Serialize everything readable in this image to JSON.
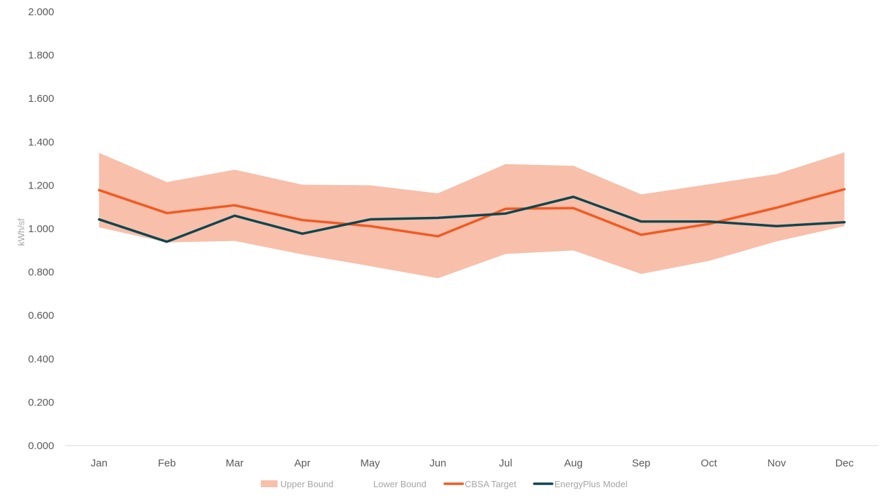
{
  "chart_data": {
    "type": "area",
    "categories": [
      "Jan",
      "Feb",
      "Mar",
      "Apr",
      "May",
      "Jun",
      "Jul",
      "Aug",
      "Sep",
      "Oct",
      "Nov",
      "Dec"
    ],
    "ylabel": "kWh/sf",
    "xlabel": "",
    "ylim": [
      0,
      2.0
    ],
    "yticks": [
      "0.000",
      "0.200",
      "0.400",
      "0.600",
      "0.800",
      "1.000",
      "1.200",
      "1.400",
      "1.600",
      "1.800",
      "2.000"
    ],
    "grid": false,
    "legend_position": "bottom",
    "series": [
      {
        "name": "Upper Bound",
        "kind": "band-upper",
        "color": "#f8bfaa",
        "values": [
          1.35,
          1.215,
          1.272,
          1.203,
          1.2,
          1.163,
          1.298,
          1.29,
          1.158,
          1.205,
          1.252,
          1.352
        ]
      },
      {
        "name": "Lower Bound",
        "kind": "band-lower",
        "color": "#ffffff",
        "values": [
          1.005,
          0.935,
          0.942,
          0.88,
          0.826,
          0.77,
          0.882,
          0.898,
          0.79,
          0.85,
          0.94,
          1.01
        ]
      },
      {
        "name": "CBSA Target",
        "kind": "line",
        "color": "#f15a22",
        "values": [
          1.178,
          1.072,
          1.108,
          1.04,
          1.012,
          0.965,
          1.092,
          1.095,
          0.972,
          1.022,
          1.097,
          1.182
        ]
      },
      {
        "name": "EnergyPlus Model",
        "kind": "line",
        "color": "#0d4650",
        "values": [
          1.043,
          0.94,
          1.06,
          0.977,
          1.043,
          1.05,
          1.07,
          1.147,
          1.033,
          1.033,
          1.012,
          1.03
        ]
      }
    ]
  }
}
